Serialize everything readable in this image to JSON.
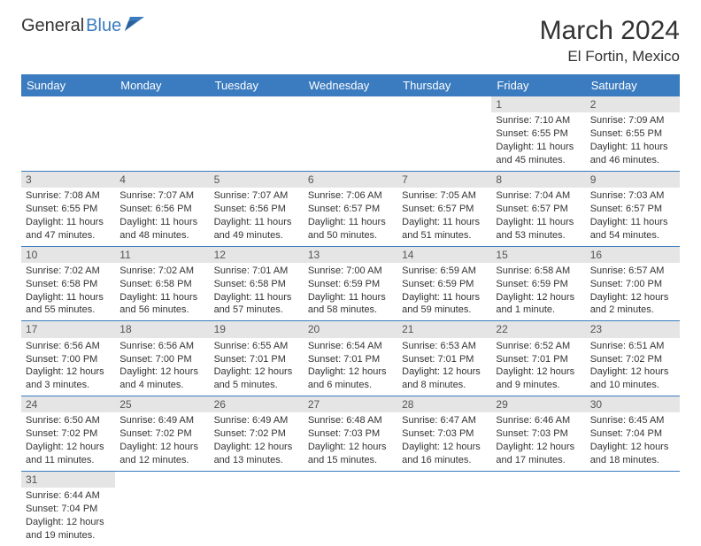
{
  "logo": {
    "text1": "General",
    "text2": "Blue"
  },
  "title": "March 2024",
  "location": "El Fortin, Mexico",
  "colors": {
    "header_bg": "#3b7bbf",
    "header_fg": "#ffffff",
    "daynum_bg": "#e5e5e5",
    "border": "#3b7bbf"
  },
  "day_headers": [
    "Sunday",
    "Monday",
    "Tuesday",
    "Wednesday",
    "Thursday",
    "Friday",
    "Saturday"
  ],
  "weeks": [
    [
      null,
      null,
      null,
      null,
      null,
      {
        "n": "1",
        "sr": "Sunrise: 7:10 AM",
        "ss": "Sunset: 6:55 PM",
        "d1": "Daylight: 11 hours",
        "d2": "and 45 minutes."
      },
      {
        "n": "2",
        "sr": "Sunrise: 7:09 AM",
        "ss": "Sunset: 6:55 PM",
        "d1": "Daylight: 11 hours",
        "d2": "and 46 minutes."
      }
    ],
    [
      {
        "n": "3",
        "sr": "Sunrise: 7:08 AM",
        "ss": "Sunset: 6:55 PM",
        "d1": "Daylight: 11 hours",
        "d2": "and 47 minutes."
      },
      {
        "n": "4",
        "sr": "Sunrise: 7:07 AM",
        "ss": "Sunset: 6:56 PM",
        "d1": "Daylight: 11 hours",
        "d2": "and 48 minutes."
      },
      {
        "n": "5",
        "sr": "Sunrise: 7:07 AM",
        "ss": "Sunset: 6:56 PM",
        "d1": "Daylight: 11 hours",
        "d2": "and 49 minutes."
      },
      {
        "n": "6",
        "sr": "Sunrise: 7:06 AM",
        "ss": "Sunset: 6:57 PM",
        "d1": "Daylight: 11 hours",
        "d2": "and 50 minutes."
      },
      {
        "n": "7",
        "sr": "Sunrise: 7:05 AM",
        "ss": "Sunset: 6:57 PM",
        "d1": "Daylight: 11 hours",
        "d2": "and 51 minutes."
      },
      {
        "n": "8",
        "sr": "Sunrise: 7:04 AM",
        "ss": "Sunset: 6:57 PM",
        "d1": "Daylight: 11 hours",
        "d2": "and 53 minutes."
      },
      {
        "n": "9",
        "sr": "Sunrise: 7:03 AM",
        "ss": "Sunset: 6:57 PM",
        "d1": "Daylight: 11 hours",
        "d2": "and 54 minutes."
      }
    ],
    [
      {
        "n": "10",
        "sr": "Sunrise: 7:02 AM",
        "ss": "Sunset: 6:58 PM",
        "d1": "Daylight: 11 hours",
        "d2": "and 55 minutes."
      },
      {
        "n": "11",
        "sr": "Sunrise: 7:02 AM",
        "ss": "Sunset: 6:58 PM",
        "d1": "Daylight: 11 hours",
        "d2": "and 56 minutes."
      },
      {
        "n": "12",
        "sr": "Sunrise: 7:01 AM",
        "ss": "Sunset: 6:58 PM",
        "d1": "Daylight: 11 hours",
        "d2": "and 57 minutes."
      },
      {
        "n": "13",
        "sr": "Sunrise: 7:00 AM",
        "ss": "Sunset: 6:59 PM",
        "d1": "Daylight: 11 hours",
        "d2": "and 58 minutes."
      },
      {
        "n": "14",
        "sr": "Sunrise: 6:59 AM",
        "ss": "Sunset: 6:59 PM",
        "d1": "Daylight: 11 hours",
        "d2": "and 59 minutes."
      },
      {
        "n": "15",
        "sr": "Sunrise: 6:58 AM",
        "ss": "Sunset: 6:59 PM",
        "d1": "Daylight: 12 hours",
        "d2": "and 1 minute."
      },
      {
        "n": "16",
        "sr": "Sunrise: 6:57 AM",
        "ss": "Sunset: 7:00 PM",
        "d1": "Daylight: 12 hours",
        "d2": "and 2 minutes."
      }
    ],
    [
      {
        "n": "17",
        "sr": "Sunrise: 6:56 AM",
        "ss": "Sunset: 7:00 PM",
        "d1": "Daylight: 12 hours",
        "d2": "and 3 minutes."
      },
      {
        "n": "18",
        "sr": "Sunrise: 6:56 AM",
        "ss": "Sunset: 7:00 PM",
        "d1": "Daylight: 12 hours",
        "d2": "and 4 minutes."
      },
      {
        "n": "19",
        "sr": "Sunrise: 6:55 AM",
        "ss": "Sunset: 7:01 PM",
        "d1": "Daylight: 12 hours",
        "d2": "and 5 minutes."
      },
      {
        "n": "20",
        "sr": "Sunrise: 6:54 AM",
        "ss": "Sunset: 7:01 PM",
        "d1": "Daylight: 12 hours",
        "d2": "and 6 minutes."
      },
      {
        "n": "21",
        "sr": "Sunrise: 6:53 AM",
        "ss": "Sunset: 7:01 PM",
        "d1": "Daylight: 12 hours",
        "d2": "and 8 minutes."
      },
      {
        "n": "22",
        "sr": "Sunrise: 6:52 AM",
        "ss": "Sunset: 7:01 PM",
        "d1": "Daylight: 12 hours",
        "d2": "and 9 minutes."
      },
      {
        "n": "23",
        "sr": "Sunrise: 6:51 AM",
        "ss": "Sunset: 7:02 PM",
        "d1": "Daylight: 12 hours",
        "d2": "and 10 minutes."
      }
    ],
    [
      {
        "n": "24",
        "sr": "Sunrise: 6:50 AM",
        "ss": "Sunset: 7:02 PM",
        "d1": "Daylight: 12 hours",
        "d2": "and 11 minutes."
      },
      {
        "n": "25",
        "sr": "Sunrise: 6:49 AM",
        "ss": "Sunset: 7:02 PM",
        "d1": "Daylight: 12 hours",
        "d2": "and 12 minutes."
      },
      {
        "n": "26",
        "sr": "Sunrise: 6:49 AM",
        "ss": "Sunset: 7:02 PM",
        "d1": "Daylight: 12 hours",
        "d2": "and 13 minutes."
      },
      {
        "n": "27",
        "sr": "Sunrise: 6:48 AM",
        "ss": "Sunset: 7:03 PM",
        "d1": "Daylight: 12 hours",
        "d2": "and 15 minutes."
      },
      {
        "n": "28",
        "sr": "Sunrise: 6:47 AM",
        "ss": "Sunset: 7:03 PM",
        "d1": "Daylight: 12 hours",
        "d2": "and 16 minutes."
      },
      {
        "n": "29",
        "sr": "Sunrise: 6:46 AM",
        "ss": "Sunset: 7:03 PM",
        "d1": "Daylight: 12 hours",
        "d2": "and 17 minutes."
      },
      {
        "n": "30",
        "sr": "Sunrise: 6:45 AM",
        "ss": "Sunset: 7:04 PM",
        "d1": "Daylight: 12 hours",
        "d2": "and 18 minutes."
      }
    ],
    [
      {
        "n": "31",
        "sr": "Sunrise: 6:44 AM",
        "ss": "Sunset: 7:04 PM",
        "d1": "Daylight: 12 hours",
        "d2": "and 19 minutes."
      },
      null,
      null,
      null,
      null,
      null,
      null
    ]
  ]
}
